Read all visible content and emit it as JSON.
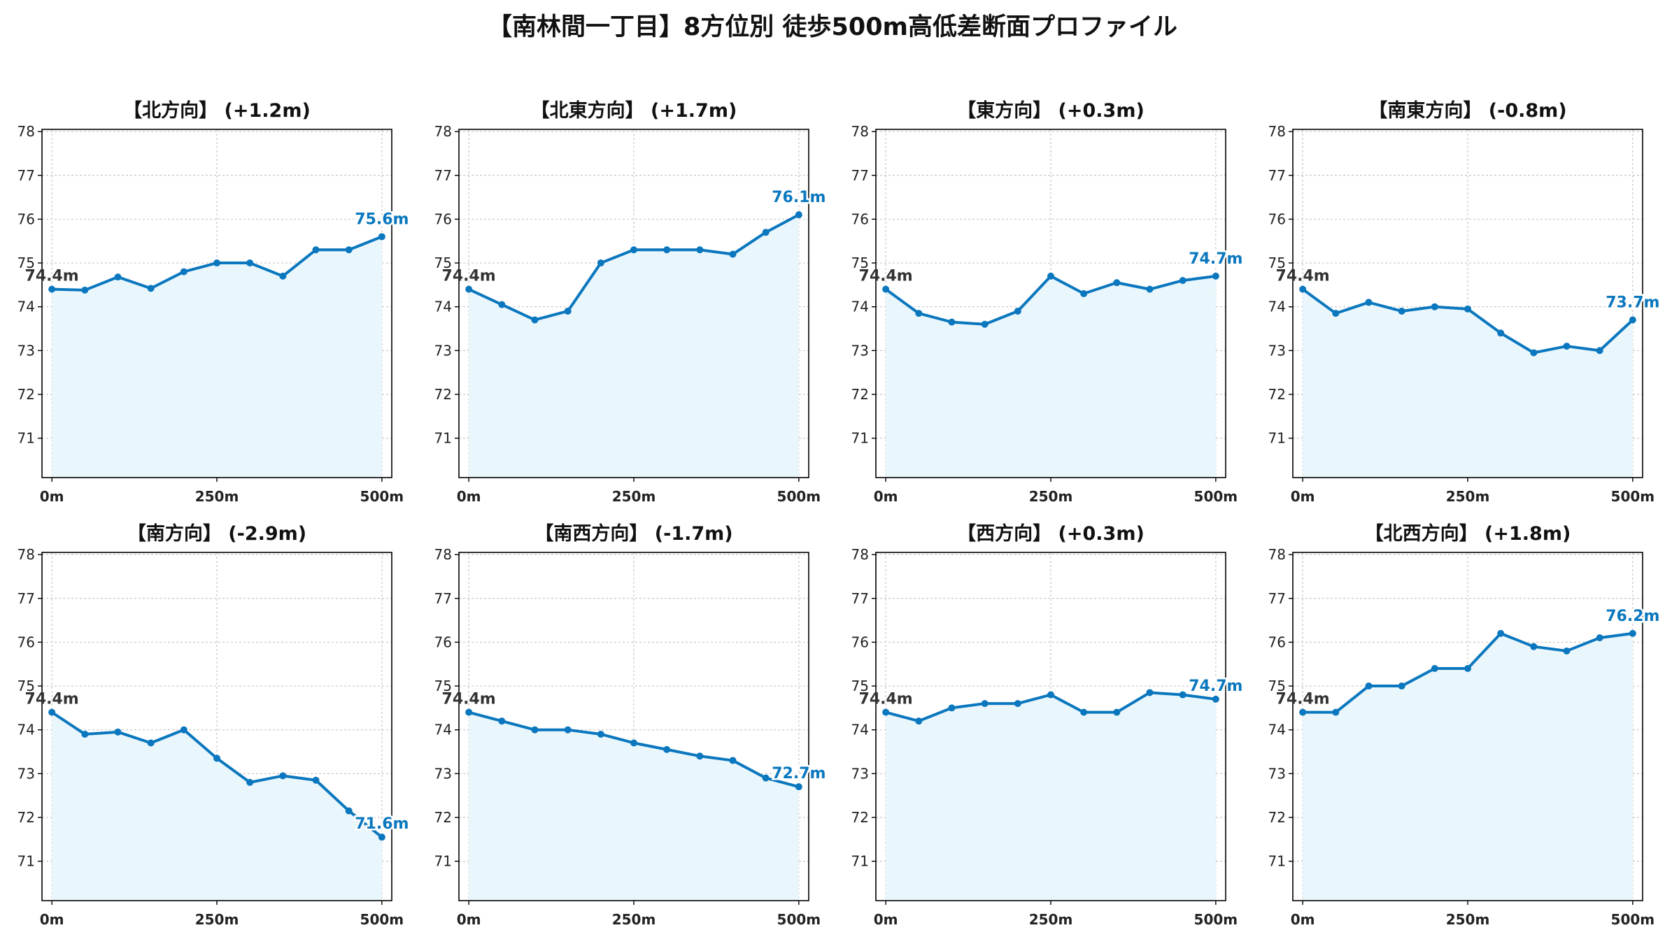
{
  "suptitle": "【南林間一丁目】8方位別 徒歩500m高低差断面プロファイル",
  "colors": {
    "line": "#0a77be",
    "fill": "#e9f6fc",
    "grid": "#c8c8c8",
    "start_label": "#333333",
    "end_label": "#0a77be"
  },
  "chart_data": [
    {
      "type": "area",
      "title": "【北方向】 (+1.2m)",
      "x": [
        0,
        50,
        100,
        150,
        200,
        250,
        300,
        350,
        400,
        450,
        500
      ],
      "y": [
        74.4,
        74.38,
        74.68,
        74.42,
        74.8,
        75.0,
        75.0,
        74.7,
        75.3,
        75.3,
        75.6
      ],
      "start_label": "74.4m",
      "end_label": "75.6m",
      "xticks": [
        "0m",
        "250m",
        "500m"
      ],
      "yticks": [
        71,
        72,
        73,
        74,
        75,
        76,
        77,
        78
      ],
      "ylim": [
        70.1,
        78.05
      ],
      "xlim": [
        -15,
        515
      ],
      "grid": true
    },
    {
      "type": "area",
      "title": "【北東方向】 (+1.7m)",
      "x": [
        0,
        50,
        100,
        150,
        200,
        250,
        300,
        350,
        400,
        450,
        500
      ],
      "y": [
        74.4,
        74.05,
        73.7,
        73.9,
        75.0,
        75.3,
        75.3,
        75.3,
        75.2,
        75.7,
        76.1
      ],
      "start_label": "74.4m",
      "end_label": "76.1m",
      "xticks": [
        "0m",
        "250m",
        "500m"
      ],
      "yticks": [
        71,
        72,
        73,
        74,
        75,
        76,
        77,
        78
      ],
      "ylim": [
        70.1,
        78.05
      ],
      "xlim": [
        -15,
        515
      ],
      "grid": true
    },
    {
      "type": "area",
      "title": "【東方向】 (+0.3m)",
      "x": [
        0,
        50,
        100,
        150,
        200,
        250,
        300,
        350,
        400,
        450,
        500
      ],
      "y": [
        74.4,
        73.85,
        73.65,
        73.6,
        73.9,
        74.7,
        74.3,
        74.55,
        74.4,
        74.6,
        74.7
      ],
      "start_label": "74.4m",
      "end_label": "74.7m",
      "xticks": [
        "0m",
        "250m",
        "500m"
      ],
      "yticks": [
        71,
        72,
        73,
        74,
        75,
        76,
        77,
        78
      ],
      "ylim": [
        70.1,
        78.05
      ],
      "xlim": [
        -15,
        515
      ],
      "grid": true
    },
    {
      "type": "area",
      "title": "【南東方向】 (-0.8m)",
      "x": [
        0,
        50,
        100,
        150,
        200,
        250,
        300,
        350,
        400,
        450,
        500
      ],
      "y": [
        74.4,
        73.85,
        74.1,
        73.9,
        74.0,
        73.95,
        73.4,
        72.95,
        73.1,
        73.0,
        73.7
      ],
      "start_label": "74.4m",
      "end_label": "73.7m",
      "xticks": [
        "0m",
        "250m",
        "500m"
      ],
      "yticks": [
        71,
        72,
        73,
        74,
        75,
        76,
        77,
        78
      ],
      "ylim": [
        70.1,
        78.05
      ],
      "xlim": [
        -15,
        515
      ],
      "grid": true
    },
    {
      "type": "area",
      "title": "【南方向】 (-2.9m)",
      "x": [
        0,
        50,
        100,
        150,
        200,
        250,
        300,
        350,
        400,
        450,
        500
      ],
      "y": [
        74.4,
        73.9,
        73.95,
        73.7,
        74.0,
        73.35,
        72.8,
        72.95,
        72.85,
        72.15,
        71.55
      ],
      "start_label": "74.4m",
      "end_label": "71.6m",
      "xticks": [
        "0m",
        "250m",
        "500m"
      ],
      "yticks": [
        71,
        72,
        73,
        74,
        75,
        76,
        77,
        78
      ],
      "ylim": [
        70.1,
        78.05
      ],
      "xlim": [
        -15,
        515
      ],
      "grid": true
    },
    {
      "type": "area",
      "title": "【南西方向】 (-1.7m)",
      "x": [
        0,
        50,
        100,
        150,
        200,
        250,
        300,
        350,
        400,
        450,
        500
      ],
      "y": [
        74.4,
        74.2,
        74.0,
        74.0,
        73.9,
        73.7,
        73.55,
        73.4,
        73.3,
        72.9,
        72.7
      ],
      "start_label": "74.4m",
      "end_label": "72.7m",
      "xticks": [
        "0m",
        "250m",
        "500m"
      ],
      "yticks": [
        71,
        72,
        73,
        74,
        75,
        76,
        77,
        78
      ],
      "ylim": [
        70.1,
        78.05
      ],
      "xlim": [
        -15,
        515
      ],
      "grid": true
    },
    {
      "type": "area",
      "title": "【西方向】 (+0.3m)",
      "x": [
        0,
        50,
        100,
        150,
        200,
        250,
        300,
        350,
        400,
        450,
        500
      ],
      "y": [
        74.4,
        74.2,
        74.5,
        74.6,
        74.6,
        74.8,
        74.4,
        74.4,
        74.85,
        74.8,
        74.7
      ],
      "start_label": "74.4m",
      "end_label": "74.7m",
      "xticks": [
        "0m",
        "250m",
        "500m"
      ],
      "yticks": [
        71,
        72,
        73,
        74,
        75,
        76,
        77,
        78
      ],
      "ylim": [
        70.1,
        78.05
      ],
      "xlim": [
        -15,
        515
      ],
      "grid": true
    },
    {
      "type": "area",
      "title": "【北西方向】 (+1.8m)",
      "x": [
        0,
        50,
        100,
        150,
        200,
        250,
        300,
        350,
        400,
        450,
        500
      ],
      "y": [
        74.4,
        74.4,
        75.0,
        75.0,
        75.4,
        75.4,
        76.2,
        75.9,
        75.8,
        76.1,
        76.2
      ],
      "start_label": "74.4m",
      "end_label": "76.2m",
      "xticks": [
        "0m",
        "250m",
        "500m"
      ],
      "yticks": [
        71,
        72,
        73,
        74,
        75,
        76,
        77,
        78
      ],
      "ylim": [
        70.1,
        78.05
      ],
      "xlim": [
        -15,
        515
      ],
      "grid": true
    }
  ]
}
